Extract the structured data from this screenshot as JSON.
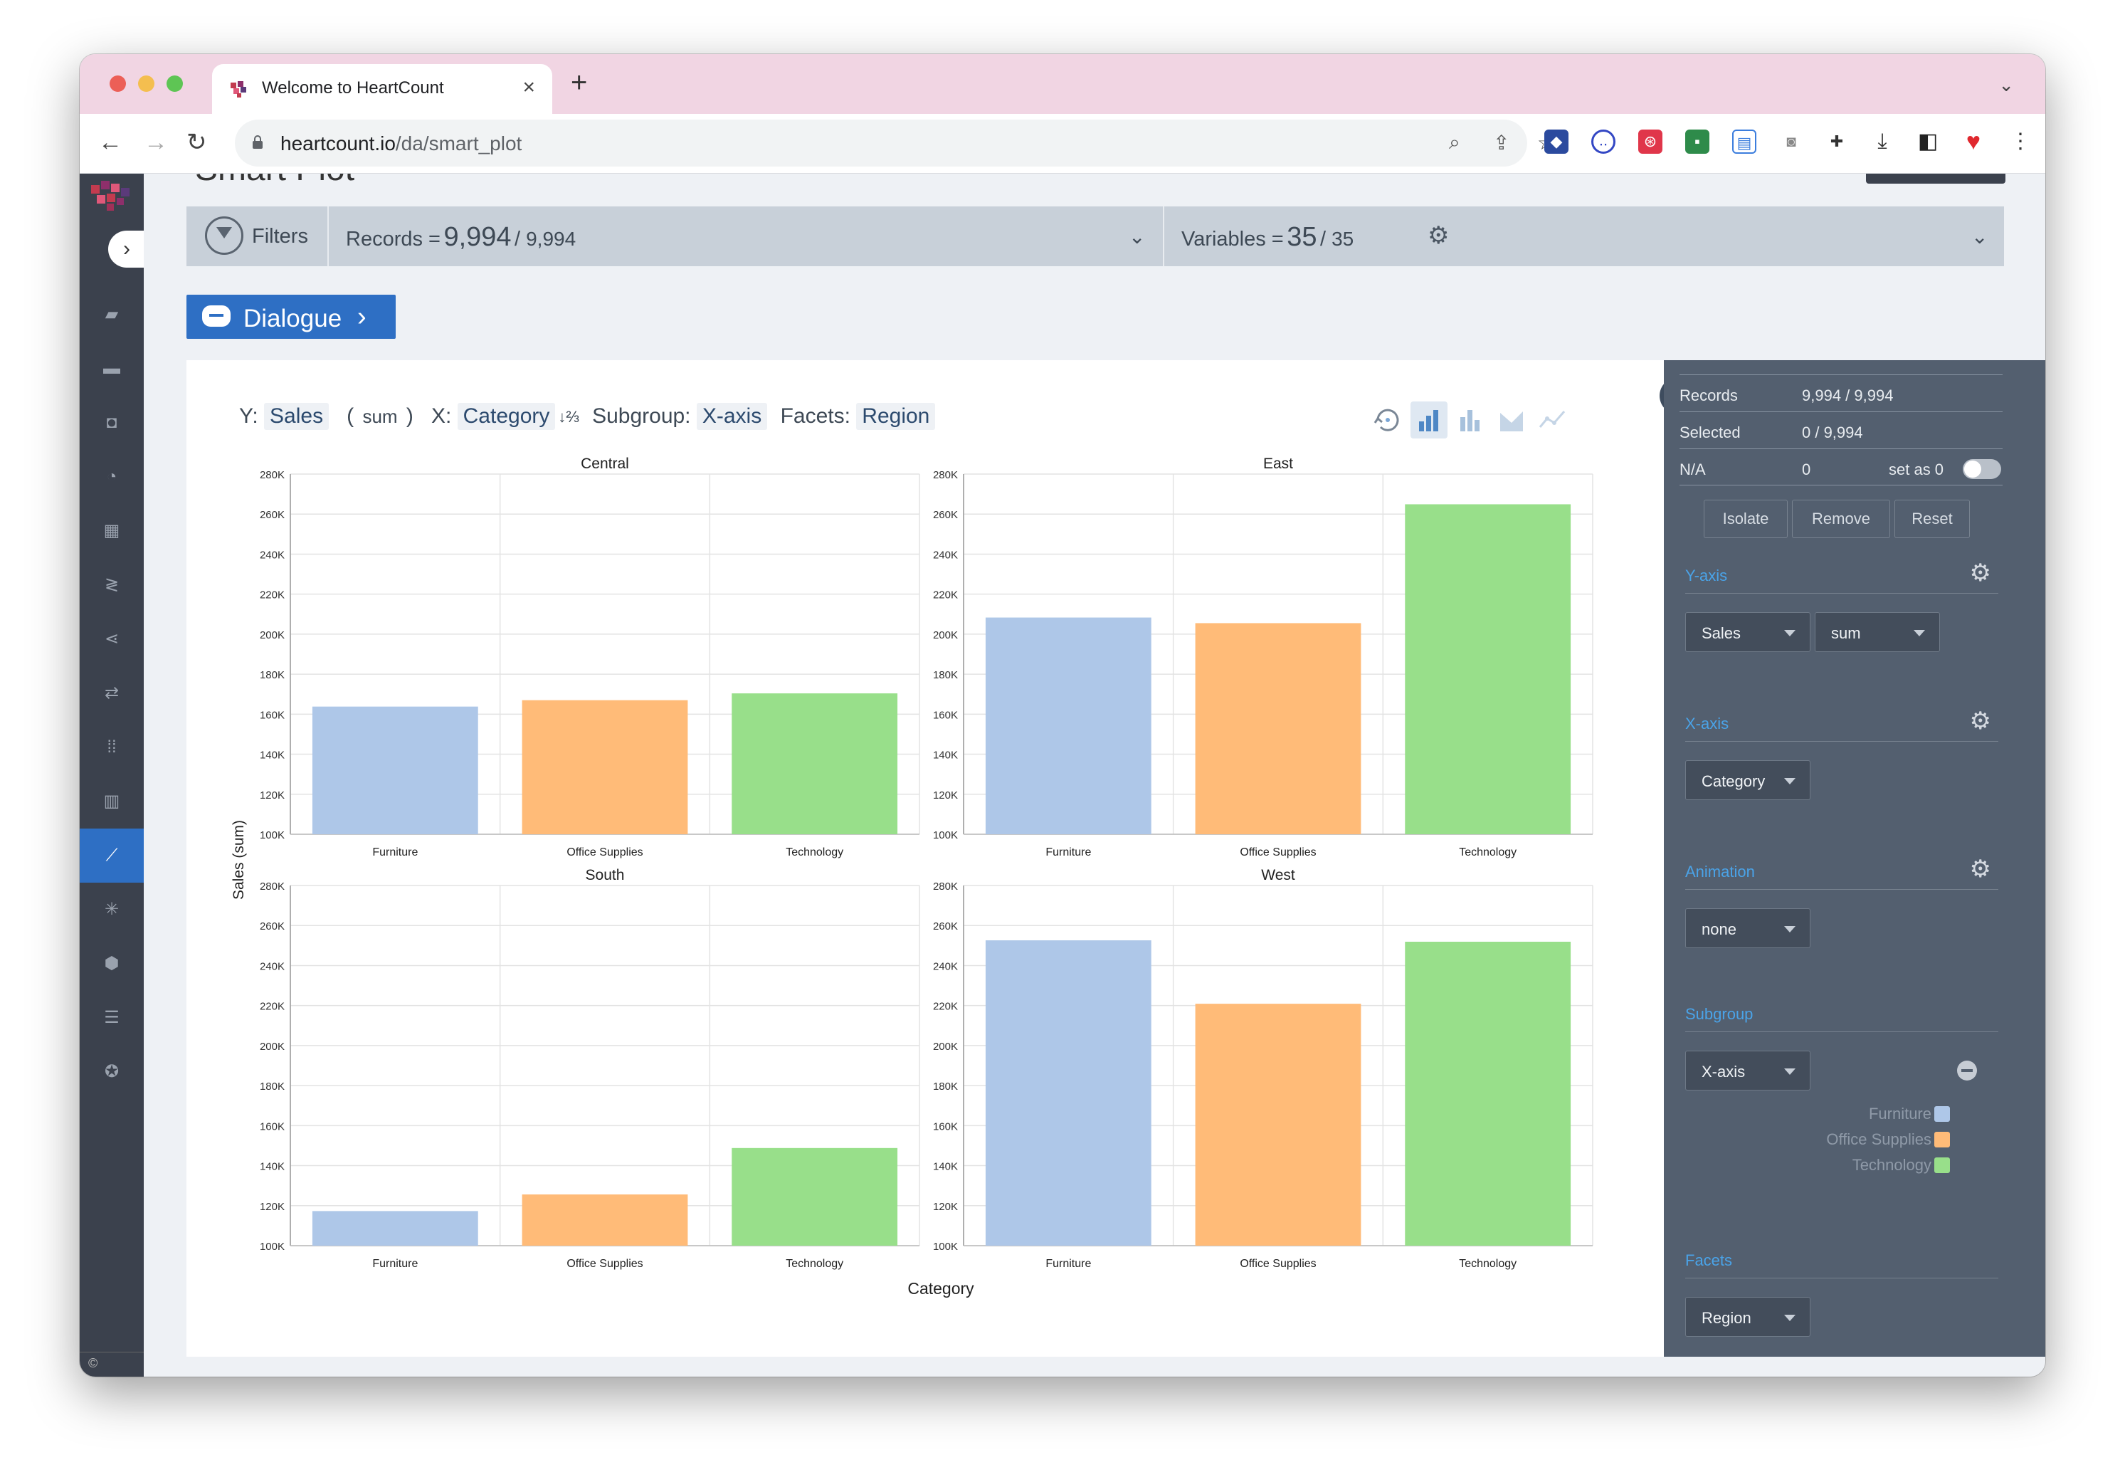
{
  "browser": {
    "tab_title": "Welcome to HeartCount",
    "url_host": "heartcount.io",
    "url_path": "/da/smart_plot"
  },
  "page": {
    "title": "Smart Plot"
  },
  "filters": {
    "label": "Filters",
    "records_label": "Records =",
    "records_value": "9,994",
    "records_total": "9,994",
    "variables_label": "Variables =",
    "variables_value": "35",
    "variables_total": "35"
  },
  "dialogue": {
    "label": "Dialogue"
  },
  "controls": {
    "y_label": "Y:",
    "y_value": "Sales",
    "agg_value": "sum",
    "x_label": "X:",
    "x_value": "Category",
    "subgroup_label": "Subgroup:",
    "subgroup_value": "X-axis",
    "facets_label": "Facets:",
    "facets_value": "Region"
  },
  "chart_data": {
    "type": "bar",
    "xlabel": "Category",
    "ylabel": "Sales (sum)",
    "ylim": [
      100000,
      280000
    ],
    "ytick_labels": [
      "100K",
      "120K",
      "140K",
      "160K",
      "180K",
      "200K",
      "220K",
      "240K",
      "260K",
      "280K"
    ],
    "categories": [
      "Furniture",
      "Office Supplies",
      "Technology"
    ],
    "colors": [
      "#aec7e8",
      "#ffbb78",
      "#98df8a"
    ],
    "grid": true,
    "facets": [
      {
        "name": "Central",
        "values": [
          163800,
          167000,
          170400
        ]
      },
      {
        "name": "East",
        "values": [
          208300,
          205500,
          264900
        ]
      },
      {
        "name": "South",
        "values": [
          117300,
          125600,
          148800
        ]
      },
      {
        "name": "West",
        "values": [
          252600,
          220900,
          251900
        ]
      }
    ]
  },
  "panel": {
    "stats": [
      {
        "key": "Records",
        "value": "9,994 / 9,994"
      },
      {
        "key": "Selected",
        "value": "0 / 9,994"
      },
      {
        "key": "N/A",
        "value": "0",
        "extra": "set as 0"
      }
    ],
    "buttons": [
      "Isolate",
      "Remove",
      "Reset"
    ],
    "yaxis": {
      "title": "Y-axis",
      "field": "Sales",
      "agg": "sum"
    },
    "xaxis": {
      "title": "X-axis",
      "field": "Category"
    },
    "animation": {
      "title": "Animation",
      "value": "none"
    },
    "subgroup": {
      "title": "Subgroup",
      "value": "X-axis",
      "legend": [
        "Furniture",
        "Office Supplies",
        "Technology"
      ]
    },
    "facets": {
      "title": "Facets",
      "value": "Region"
    }
  },
  "footer": {
    "copyright": "©"
  }
}
